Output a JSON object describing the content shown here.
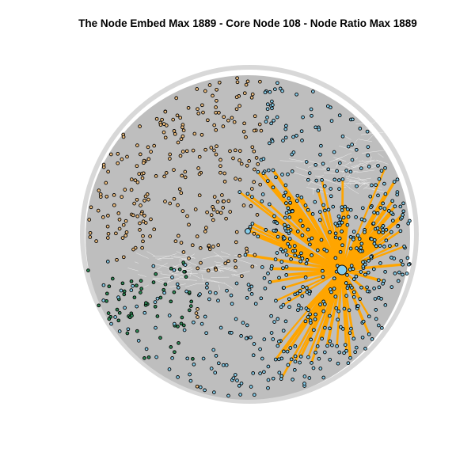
{
  "title": "The Node Embed Max 1889 - Core Node 108 - Node Ratio Max 1889",
  "colors": {
    "background_edges": "#bebebe",
    "highlight_edges": "#ffa500",
    "node_orange": "#f0c080",
    "node_blue": "#87ceeb",
    "node_green": "#2e8b57",
    "node_border": "#000000"
  },
  "graph": {
    "layout": "circular cloud",
    "core_node": "108",
    "node_groups": [
      "orange",
      "blue",
      "green"
    ]
  }
}
